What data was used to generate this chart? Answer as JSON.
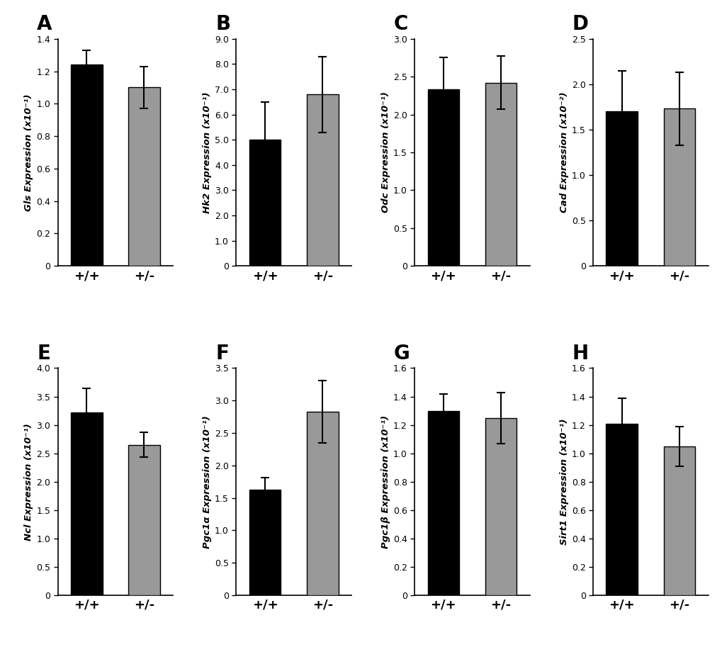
{
  "panels": [
    {
      "label": "A",
      "gene": "Gls",
      "unit": " Expression (x10⁻¹)",
      "ylim": [
        0,
        1.4
      ],
      "yticks": [
        0,
        0.2,
        0.4,
        0.6,
        0.8,
        1.0,
        1.2,
        1.4
      ],
      "ytick_labels": [
        "0",
        "0.2",
        "0.4",
        "0.6",
        "0.8",
        "1.0",
        "1.2",
        "1.4"
      ],
      "bar_values": [
        1.24,
        1.1
      ],
      "bar_errors": [
        0.09,
        0.13
      ],
      "bar_colors": [
        "#000000",
        "#999999"
      ]
    },
    {
      "label": "B",
      "gene": "Hk2",
      "unit": " Expression (x10⁻¹)",
      "ylim": [
        0,
        9.0
      ],
      "yticks": [
        0,
        1.0,
        2.0,
        3.0,
        4.0,
        5.0,
        6.0,
        7.0,
        8.0,
        9.0
      ],
      "ytick_labels": [
        "0",
        "1.0",
        "2.0",
        "3.0",
        "4.0",
        "5.0",
        "6.0",
        "7.0",
        "8.0",
        "9.0"
      ],
      "bar_values": [
        5.0,
        6.8
      ],
      "bar_errors": [
        1.5,
        1.5
      ],
      "bar_colors": [
        "#000000",
        "#999999"
      ]
    },
    {
      "label": "C",
      "gene": "Odc",
      "unit": " Expression (x10⁻¹)",
      "ylim": [
        0,
        3.0
      ],
      "yticks": [
        0,
        0.5,
        1.0,
        1.5,
        2.0,
        2.5,
        3.0
      ],
      "ytick_labels": [
        "0",
        "0.5",
        "1.0",
        "1.5",
        "2.0",
        "2.5",
        "3.0"
      ],
      "bar_values": [
        2.33,
        2.42
      ],
      "bar_errors": [
        0.42,
        0.35
      ],
      "bar_colors": [
        "#000000",
        "#999999"
      ]
    },
    {
      "label": "D",
      "gene": "Cad",
      "unit": " Expression (x10⁻²)",
      "ylim": [
        0,
        2.5
      ],
      "yticks": [
        0,
        0.5,
        1.0,
        1.5,
        2.0,
        2.5
      ],
      "ytick_labels": [
        "0",
        "0.5",
        "1.0",
        "1.5",
        "2.0",
        "2.5"
      ],
      "bar_values": [
        1.7,
        1.73
      ],
      "bar_errors": [
        0.45,
        0.4
      ],
      "bar_colors": [
        "#000000",
        "#999999"
      ]
    },
    {
      "label": "E",
      "gene": "Ncl",
      "unit": " Expression (x10⁻¹)",
      "ylim": [
        0,
        4.0
      ],
      "yticks": [
        0,
        0.5,
        1.0,
        1.5,
        2.0,
        2.5,
        3.0,
        3.5,
        4.0
      ],
      "ytick_labels": [
        "0",
        "0.5",
        "1.0",
        "1.5",
        "2.0",
        "2.5",
        "3.0",
        "3.5",
        "4.0"
      ],
      "bar_values": [
        3.22,
        2.65
      ],
      "bar_errors": [
        0.42,
        0.22
      ],
      "bar_colors": [
        "#000000",
        "#999999"
      ]
    },
    {
      "label": "F",
      "gene": "Pgc1α",
      "unit": " Expression (x10⁻¹)",
      "ylim": [
        0,
        3.5
      ],
      "yticks": [
        0,
        0.5,
        1.0,
        1.5,
        2.0,
        2.5,
        3.0,
        3.5
      ],
      "ytick_labels": [
        "0",
        "0.5",
        "1.0",
        "1.5",
        "2.0",
        "2.5",
        "3.0",
        "3.5"
      ],
      "bar_values": [
        1.63,
        2.83
      ],
      "bar_errors": [
        0.18,
        0.48
      ],
      "bar_colors": [
        "#000000",
        "#999999"
      ]
    },
    {
      "label": "G",
      "gene": "Pgc1β",
      "unit": " Expression (x10⁻¹)",
      "ylim": [
        0,
        1.6
      ],
      "yticks": [
        0,
        0.2,
        0.4,
        0.6,
        0.8,
        1.0,
        1.2,
        1.4,
        1.6
      ],
      "ytick_labels": [
        "0",
        "0.2",
        "0.4",
        "0.6",
        "0.8",
        "1.0",
        "1.2",
        "1.4",
        "1.6"
      ],
      "bar_values": [
        1.3,
        1.25
      ],
      "bar_errors": [
        0.12,
        0.18
      ],
      "bar_colors": [
        "#000000",
        "#999999"
      ]
    },
    {
      "label": "H",
      "gene": "Sirt1",
      "unit": " Expression (x10⁻¹)",
      "ylim": [
        0,
        1.6
      ],
      "yticks": [
        0,
        0.2,
        0.4,
        0.6,
        0.8,
        1.0,
        1.2,
        1.4,
        1.6
      ],
      "ytick_labels": [
        "0",
        "0.2",
        "0.4",
        "0.6",
        "0.8",
        "1.0",
        "1.2",
        "1.4",
        "1.6"
      ],
      "bar_values": [
        1.21,
        1.05
      ],
      "bar_errors": [
        0.18,
        0.14
      ],
      "bar_colors": [
        "#000000",
        "#999999"
      ]
    }
  ],
  "xticklabels": [
    "+/+",
    "+/-"
  ],
  "bar_width": 0.55,
  "xlabel_fontsize": 13,
  "ylabel_fontsize": 9.5,
  "label_fontsize": 20,
  "tick_fontsize": 9,
  "background_color": "#ffffff"
}
